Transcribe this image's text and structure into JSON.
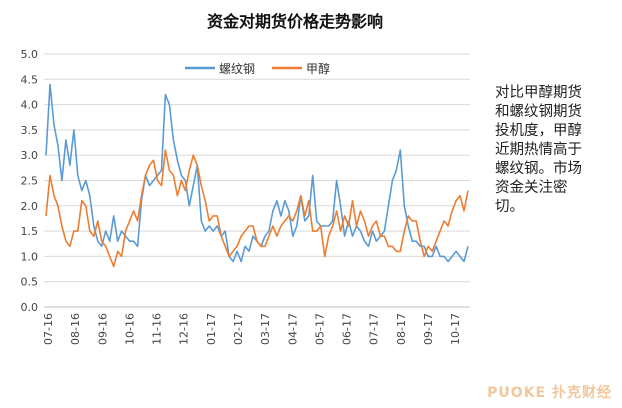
{
  "chart_data": {
    "type": "line",
    "title": "资金对期货价格走势影响",
    "x_ticks": [
      "07-16",
      "08-16",
      "09-16",
      "10-16",
      "11-16",
      "12-16",
      "01-17",
      "02-17",
      "03-17",
      "04-17",
      "05-17",
      "06-17",
      "07-17",
      "08-17",
      "09-17",
      "10-17"
    ],
    "ylim": [
      0,
      5
    ],
    "y_ticks": [
      "0.0",
      "0.5",
      "1.0",
      "1.5",
      "2.0",
      "2.5",
      "3.0",
      "3.5",
      "4.0",
      "4.5",
      "5.0"
    ],
    "grid": true,
    "legend_position": "top",
    "series": [
      {
        "name": "螺纹钢",
        "color": "#5b9bd5",
        "values": [
          3.0,
          4.4,
          3.6,
          3.2,
          2.5,
          3.3,
          2.8,
          3.5,
          2.6,
          2.3,
          2.5,
          2.2,
          1.6,
          1.3,
          1.2,
          1.5,
          1.3,
          1.8,
          1.3,
          1.5,
          1.4,
          1.3,
          1.3,
          1.2,
          2.1,
          2.6,
          2.4,
          2.5,
          2.6,
          2.7,
          4.2,
          4.0,
          3.3,
          2.9,
          2.6,
          2.5,
          2.0,
          2.4,
          2.8,
          1.7,
          1.5,
          1.6,
          1.5,
          1.6,
          1.4,
          1.5,
          1.0,
          0.9,
          1.1,
          0.9,
          1.2,
          1.1,
          1.4,
          1.3,
          1.2,
          1.4,
          1.5,
          1.9,
          2.1,
          1.8,
          2.1,
          1.9,
          1.4,
          1.6,
          2.2,
          1.7,
          1.8,
          2.6,
          1.7,
          1.6,
          1.6,
          1.6,
          1.7,
          2.5,
          2.0,
          1.4,
          1.7,
          1.4,
          1.6,
          1.5,
          1.3,
          1.2,
          1.5,
          1.3,
          1.4,
          1.5,
          2.0,
          2.5,
          2.7,
          3.1,
          2.0,
          1.6,
          1.3,
          1.3,
          1.2,
          1.2,
          1.0,
          1.0,
          1.2,
          1.0,
          1.0,
          0.9,
          1.0,
          1.1,
          1.0,
          0.9,
          1.2
        ]
      },
      {
        "name": "甲醇",
        "color": "#ed7d31",
        "values": [
          1.8,
          2.6,
          2.2,
          2.0,
          1.6,
          1.3,
          1.2,
          1.5,
          1.5,
          2.1,
          2.0,
          1.5,
          1.4,
          1.7,
          1.3,
          1.2,
          1.0,
          0.8,
          1.1,
          1.0,
          1.5,
          1.7,
          1.9,
          1.7,
          2.2,
          2.6,
          2.8,
          2.9,
          2.5,
          2.4,
          3.1,
          2.7,
          2.6,
          2.2,
          2.5,
          2.3,
          2.7,
          3.0,
          2.8,
          2.4,
          2.1,
          1.7,
          1.8,
          1.8,
          1.4,
          1.2,
          1.0,
          1.1,
          1.2,
          1.4,
          1.5,
          1.6,
          1.6,
          1.3,
          1.2,
          1.2,
          1.4,
          1.6,
          1.4,
          1.6,
          1.7,
          1.8,
          1.7,
          1.9,
          2.2,
          1.8,
          2.1,
          1.5,
          1.5,
          1.6,
          1.0,
          1.4,
          1.6,
          1.9,
          1.5,
          1.8,
          1.6,
          2.1,
          1.6,
          1.9,
          1.7,
          1.4,
          1.6,
          1.7,
          1.4,
          1.4,
          1.2,
          1.2,
          1.1,
          1.1,
          1.5,
          1.8,
          1.7,
          1.7,
          1.3,
          1.0,
          1.2,
          1.1,
          1.3,
          1.5,
          1.7,
          1.6,
          1.9,
          2.1,
          2.2,
          1.9,
          2.3
        ]
      }
    ]
  },
  "note": "对比甲醇期货和螺纹钢期货投机度，甲醇近期热情高于螺纹钢。市场资金关注密切。",
  "watermark": "PUOKE 扑克财经"
}
